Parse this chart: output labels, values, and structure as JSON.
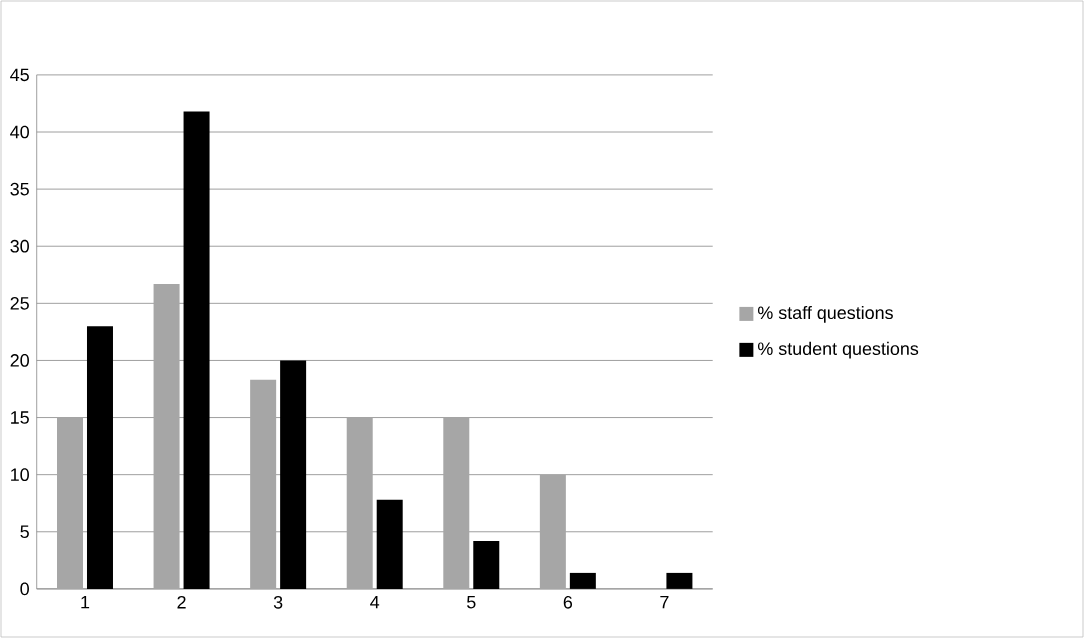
{
  "chart_data": {
    "type": "bar",
    "categories": [
      "1",
      "2",
      "3",
      "4",
      "5",
      "6",
      "7"
    ],
    "series": [
      {
        "name": "% staff questions",
        "color": "#a6a6a6",
        "values": [
          15,
          26.7,
          18.3,
          15,
          15,
          10,
          0
        ]
      },
      {
        "name": "% student questions",
        "color": "#000000",
        "values": [
          23,
          41.8,
          20,
          7.8,
          4.2,
          1.4,
          1.4
        ]
      }
    ],
    "ylim": [
      0,
      45
    ],
    "yticks": [
      0,
      5,
      10,
      15,
      20,
      25,
      30,
      35,
      40,
      45
    ],
    "grid": "y",
    "legend": "right"
  }
}
